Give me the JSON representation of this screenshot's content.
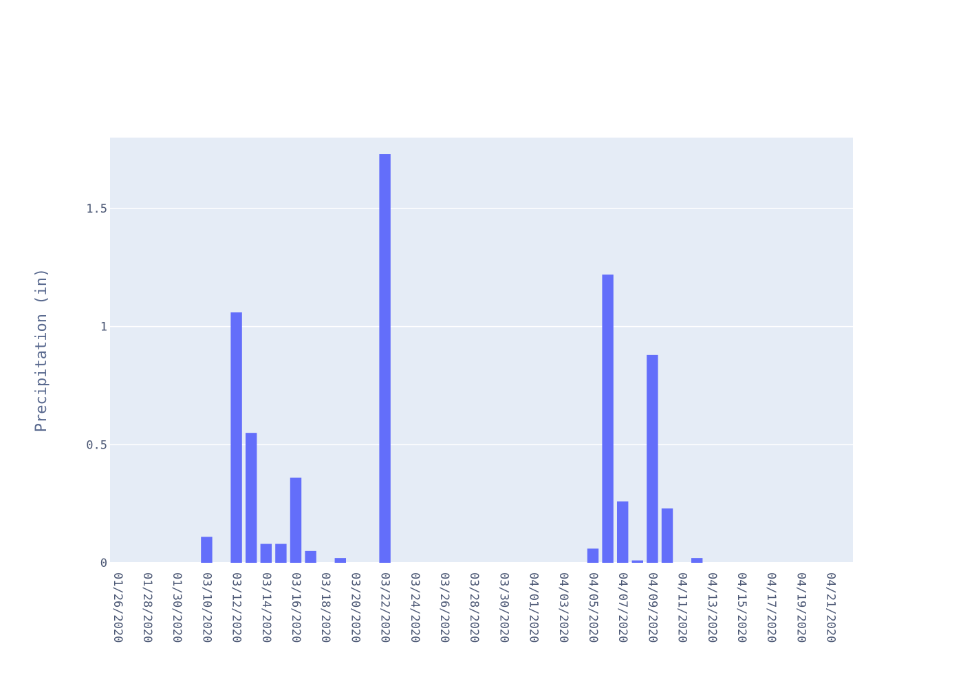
{
  "chart_data": {
    "type": "bar",
    "title": "",
    "xlabel": "",
    "ylabel": "Precipitation (in)",
    "ylim": [
      0,
      1.8
    ],
    "yticks": [
      0,
      0.5,
      1,
      1.5
    ],
    "ytick_labels": [
      "0",
      "0.5",
      "1",
      "1.5"
    ],
    "grid": true,
    "bar_color": "#636efa",
    "plot_bgcolor": "#e5ecf6",
    "gridcolor": "#ffffff",
    "tick_color": "#4a5673",
    "title_color": "#5a6a8f",
    "categories": [
      "01/26/2020",
      "01/27/2020",
      "01/28/2020",
      "01/29/2020",
      "01/30/2020",
      "01/31/2020",
      "03/10/2020",
      "03/11/2020",
      "03/12/2020",
      "03/13/2020",
      "03/14/2020",
      "03/15/2020",
      "03/16/2020",
      "03/17/2020",
      "03/18/2020",
      "03/19/2020",
      "03/20/2020",
      "03/21/2020",
      "03/22/2020",
      "03/23/2020",
      "03/24/2020",
      "03/25/2020",
      "03/26/2020",
      "03/27/2020",
      "03/28/2020",
      "03/29/2020",
      "03/30/2020",
      "03/31/2020",
      "04/01/2020",
      "04/02/2020",
      "04/03/2020",
      "04/04/2020",
      "04/05/2020",
      "04/06/2020",
      "04/07/2020",
      "04/08/2020",
      "04/09/2020",
      "04/10/2020",
      "04/11/2020",
      "04/12/2020",
      "04/13/2020",
      "04/14/2020",
      "04/15/2020",
      "04/16/2020",
      "04/17/2020",
      "04/18/2020",
      "04/19/2020",
      "04/20/2020",
      "04/21/2020",
      "04/22/2020"
    ],
    "tick_labels": [
      "01/26/2020",
      "01/28/2020",
      "01/30/2020",
      "03/10/2020",
      "03/12/2020",
      "03/14/2020",
      "03/16/2020",
      "03/18/2020",
      "03/20/2020",
      "03/22/2020",
      "03/24/2020",
      "03/26/2020",
      "03/28/2020",
      "03/30/2020",
      "04/01/2020",
      "04/03/2020",
      "04/05/2020",
      "04/07/2020",
      "04/09/2020",
      "04/11/2020",
      "04/13/2020",
      "04/15/2020",
      "04/17/2020",
      "04/19/2020",
      "04/21/2020"
    ],
    "values": [
      0,
      0,
      0,
      0,
      0,
      0,
      0.11,
      0,
      1.06,
      0.55,
      0.08,
      0.08,
      0.36,
      0.05,
      0,
      0.02,
      0,
      0,
      1.73,
      0,
      0,
      0,
      0,
      0,
      0,
      0,
      0,
      0,
      0,
      0,
      0,
      0,
      0.06,
      1.22,
      0.26,
      0.01,
      0.88,
      0.23,
      0,
      0.02,
      0,
      0,
      0,
      0,
      0,
      0,
      0,
      0,
      0,
      0
    ]
  }
}
